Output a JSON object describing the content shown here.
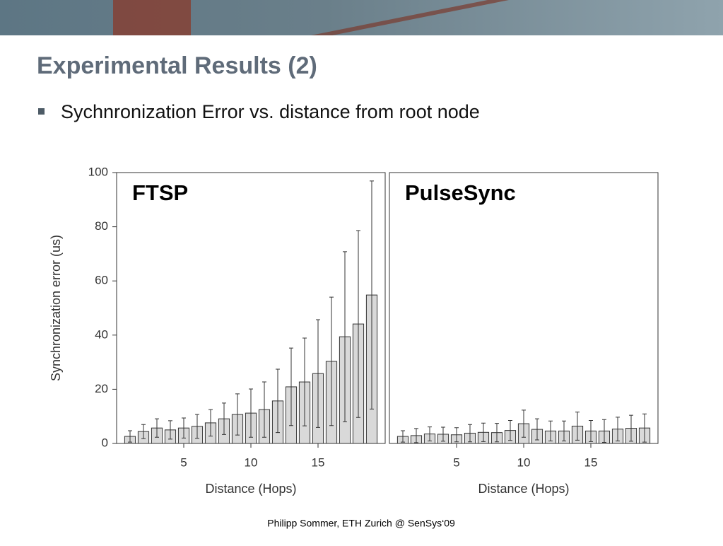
{
  "title": "Experimental Results (2)",
  "bullet": "Sychnronization Error vs. distance from root node",
  "footer": "Philipp Sommer, ETH Zurich @ SenSys‘09",
  "chart_data": [
    {
      "type": "bar",
      "title": "FTSP",
      "xlabel": "Distance (Hops)",
      "ylabel": "Synchronization error (us)",
      "x": [
        1,
        2,
        3,
        4,
        5,
        6,
        7,
        8,
        9,
        10,
        11,
        12,
        13,
        14,
        15,
        16,
        17,
        18,
        19
      ],
      "values": [
        2.6,
        4.4,
        5.7,
        5,
        5.7,
        6.3,
        7.6,
        9.1,
        10.7,
        11.2,
        12.5,
        15.7,
        20.9,
        22.7,
        25.8,
        30.3,
        39.4,
        44.1,
        54.8
      ],
      "errors": [
        2.1,
        2.6,
        3.4,
        3.4,
        3.7,
        4.4,
        4.9,
        5.8,
        7.6,
        8.9,
        10.2,
        11.7,
        14.3,
        16.2,
        19.9,
        23.7,
        31.4,
        34.5,
        42.1
      ],
      "color": "#d9d9d9",
      "xlim": [
        0,
        20
      ],
      "ylim": [
        0,
        100
      ],
      "xticks": [
        5,
        10,
        15
      ],
      "yticks": [
        0,
        20,
        40,
        60,
        80,
        100
      ]
    },
    {
      "type": "bar",
      "title": "PulseSync",
      "xlabel": "Distance (Hops)",
      "x": [
        1,
        2,
        3,
        4,
        5,
        6,
        7,
        8,
        9,
        10,
        11,
        12,
        13,
        14,
        15,
        16,
        17,
        18,
        19
      ],
      "values": [
        2.6,
        2.9,
        3.5,
        3.4,
        3.2,
        3.8,
        4.1,
        4.0,
        4.8,
        7.3,
        5.2,
        4.6,
        4.6,
        6.4,
        4.6,
        4.6,
        5.3,
        5.6,
        5.7
      ],
      "errors": [
        2.1,
        2.6,
        2.6,
        2.6,
        2.6,
        3.2,
        3.4,
        3.4,
        3.7,
        5.0,
        3.9,
        3.7,
        3.7,
        5.2,
        3.9,
        4.2,
        4.4,
        4.8,
        5.2
      ],
      "color": "#d9d9d9",
      "xlim": [
        0,
        20
      ],
      "ylim": [
        0,
        100
      ],
      "xticks": [
        5,
        10,
        15
      ]
    }
  ]
}
